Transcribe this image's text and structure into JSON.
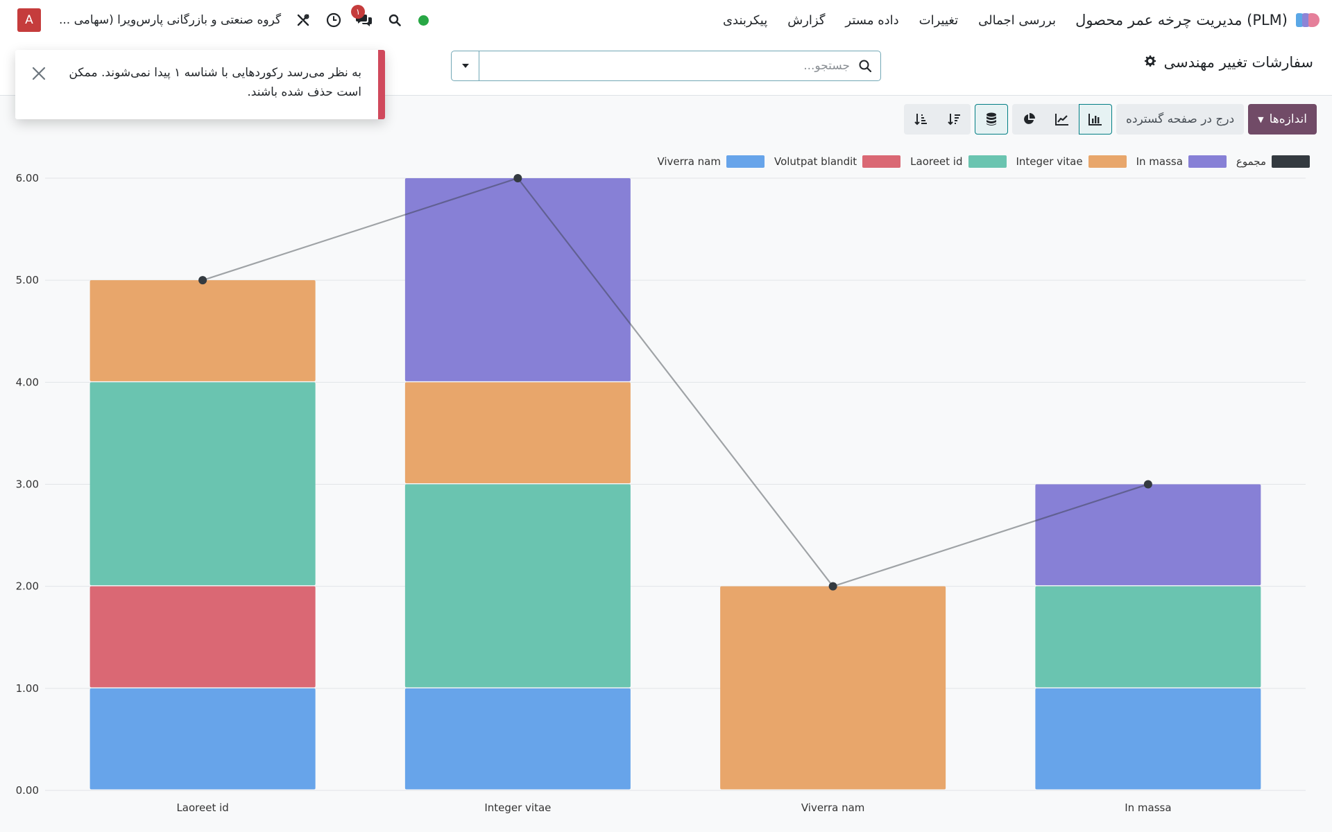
{
  "navbar": {
    "app_name": "مدیریت چرخه عمر محصول (PLM)",
    "menu": [
      "بررسی اجمالی",
      "تغییرات",
      "داده مستر",
      "گزارش",
      "پیکربندی"
    ],
    "company": "گروه صنعتی و بازرگانی پارس‌ویرا (سهامی ...",
    "avatar_letter": "A",
    "message_count": "۱"
  },
  "control_panel": {
    "page_title": "سفارشات تغییر مهندسی",
    "search_placeholder": "جستجو..."
  },
  "toast": {
    "message": "به نظر می‌رسد رکوردهایی با شناسه ۱ پیدا نمی‌شوند. ممکن است حذف شده باشند."
  },
  "toolbar": {
    "measures_label": "اندازه‌ها",
    "insert_label": "درج در صفحه گسترده"
  },
  "colors": {
    "brand": "#714b67",
    "active_border": "#017e84",
    "danger": "#d0495c"
  },
  "chart_data": {
    "type": "bar",
    "stacked": true,
    "categories": [
      "Laoreet id",
      "Integer vitae",
      "Viverra nam",
      "In massa"
    ],
    "series": [
      {
        "name": "Viverra nam",
        "color": "#67a4ea",
        "values": [
          1,
          1,
          0,
          1
        ]
      },
      {
        "name": "Volutpat blandit",
        "color": "#da6874",
        "values": [
          1,
          0,
          0,
          0
        ]
      },
      {
        "name": "Laoreet id",
        "color": "#6ac4b0",
        "values": [
          2,
          2,
          0,
          1
        ]
      },
      {
        "name": "Integer vitae",
        "color": "#e8a66b",
        "values": [
          1,
          1,
          2,
          0
        ]
      },
      {
        "name": "In massa",
        "color": "#8780d6",
        "values": [
          0,
          2,
          0,
          1
        ]
      }
    ],
    "total": {
      "name": "مجموع",
      "color": "#343a40",
      "values": [
        5,
        6,
        2,
        3
      ]
    },
    "ylim": [
      0,
      6
    ],
    "yticks": [
      "0.00",
      "1.00",
      "2.00",
      "3.00",
      "4.00",
      "5.00",
      "6.00"
    ],
    "legend_position": "top-right",
    "grid": true
  }
}
